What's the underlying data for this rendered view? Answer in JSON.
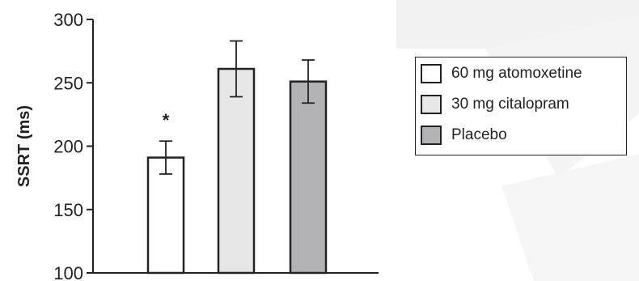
{
  "chart_data": {
    "type": "bar",
    "categories": [
      "60 mg atomoxetine",
      "30 mg citalopram",
      "Placebo"
    ],
    "values": [
      191,
      261,
      251
    ],
    "errors": [
      13,
      22,
      17
    ],
    "colors": [
      "#ffffff",
      "#e6e6e6",
      "#b3b3b5"
    ],
    "ylabel": "SSRT (ms)",
    "ylim": [
      100,
      300
    ],
    "yticks": [
      100,
      150,
      200,
      250,
      300
    ],
    "grid": false,
    "legend_position": "right",
    "annotations": [
      {
        "category": "60 mg atomoxetine",
        "text": "*"
      }
    ]
  }
}
